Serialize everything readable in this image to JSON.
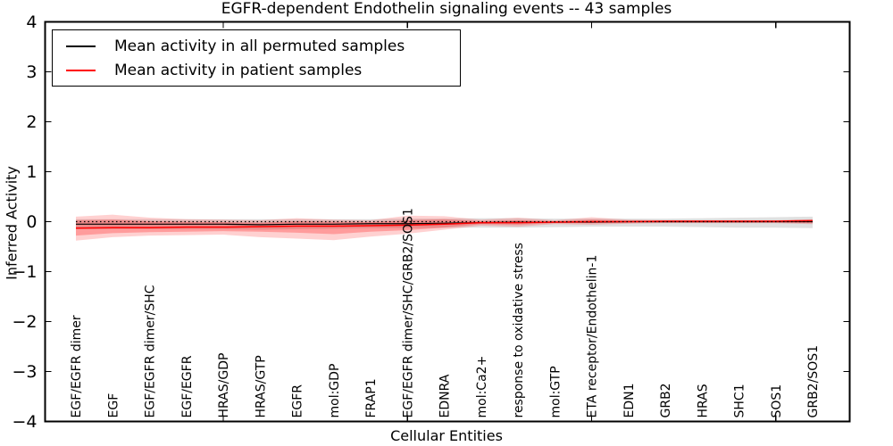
{
  "chart_data": {
    "type": "line",
    "title": "EGFR-dependent Endothelin signaling events -- 43 samples",
    "xlabel": "Cellular Entities",
    "ylabel": "Inferred Activity",
    "ylim": [
      -4,
      4
    ],
    "yticks": [
      -4,
      -3,
      -2,
      -1,
      0,
      1,
      2,
      3,
      4
    ],
    "xtick_indices": [
      4,
      9,
      14,
      19
    ],
    "grid": false,
    "legend_position": "upper left",
    "categories": [
      "EGF/EGFR dimer",
      "EGF",
      "EGF/EGFR dimer/SHC",
      "EGF/EGFR",
      "HRAS/GDP",
      "HRAS/GTP",
      "EGFR",
      "mol:GDP",
      "FRAP1",
      "EGF/EGFR dimer/SHC/GRB2/SOS1",
      "EDNRA",
      "mol:Ca2+",
      "response to oxidative stress",
      "mol:GTP",
      "ETA receptor/Endothelin-1",
      "EDN1",
      "GRB2",
      "HRAS",
      "SHC1",
      "SOS1",
      "GRB2/SOS1"
    ],
    "series": [
      {
        "name": "Mean activity in all permuted samples",
        "color": "#000000",
        "line_style": "solid",
        "in_legend": true,
        "values": [
          -0.05,
          -0.05,
          -0.05,
          -0.05,
          -0.05,
          -0.06,
          -0.05,
          -0.05,
          -0.04,
          -0.04,
          -0.03,
          -0.02,
          -0.01,
          -0.01,
          -0.01,
          0.0,
          0.0,
          0.0,
          0.0,
          0.0,
          0.0
        ]
      },
      {
        "name": "Mean activity in patient samples",
        "color": "#ff0000",
        "line_style": "solid",
        "in_legend": true,
        "values": [
          -0.13,
          -0.12,
          -0.12,
          -0.11,
          -0.11,
          -0.1,
          -0.09,
          -0.09,
          -0.08,
          -0.07,
          -0.05,
          -0.02,
          -0.02,
          -0.01,
          0.0,
          0.0,
          0.01,
          0.01,
          0.01,
          0.01,
          0.02
        ]
      },
      {
        "name": "zero reference",
        "color": "#000000",
        "line_style": "dotted",
        "in_legend": false,
        "values": [
          0,
          0,
          0,
          0,
          0,
          0,
          0,
          0,
          0,
          0,
          0,
          0,
          0,
          0,
          0,
          0,
          0,
          0,
          0,
          0,
          0
        ]
      }
    ],
    "bands": [
      {
        "id": "permuted-std-band",
        "color": "#000000",
        "alpha": 0.12,
        "upper": [
          0.05,
          0.05,
          0.05,
          0.05,
          0.05,
          0.05,
          0.05,
          0.05,
          0.05,
          0.06,
          0.06,
          0.07,
          0.07,
          0.06,
          0.06,
          0.06,
          0.06,
          0.07,
          0.08,
          0.09,
          0.1
        ],
        "lower": [
          -0.15,
          -0.15,
          -0.15,
          -0.15,
          -0.15,
          -0.16,
          -0.15,
          -0.14,
          -0.13,
          -0.13,
          -0.12,
          -0.12,
          -0.12,
          -0.11,
          -0.1,
          -0.1,
          -0.1,
          -0.11,
          -0.12,
          -0.12,
          -0.13
        ]
      },
      {
        "id": "patient-outer-band",
        "color": "#ff0000",
        "alpha": 0.18,
        "upper": [
          0.1,
          0.14,
          0.08,
          0.05,
          0.04,
          0.03,
          0.07,
          0.04,
          0.03,
          0.12,
          0.11,
          0.04,
          0.08,
          0.03,
          0.09,
          0.04,
          0.03,
          0.03,
          0.03,
          0.03,
          0.05
        ],
        "lower": [
          -0.38,
          -0.31,
          -0.28,
          -0.27,
          -0.26,
          -0.31,
          -0.34,
          -0.37,
          -0.3,
          -0.24,
          -0.16,
          -0.08,
          -0.1,
          -0.05,
          -0.06,
          -0.04,
          -0.03,
          -0.03,
          -0.03,
          -0.03,
          -0.05
        ]
      },
      {
        "id": "patient-inner-band",
        "color": "#ff0000",
        "alpha": 0.25,
        "upper": [
          0.03,
          0.04,
          0.01,
          0.0,
          -0.01,
          -0.02,
          0.01,
          0.0,
          -0.01,
          0.03,
          0.05,
          0.01,
          0.03,
          0.01,
          0.04,
          0.02,
          0.02,
          0.02,
          0.02,
          0.02,
          0.03
        ],
        "lower": [
          -0.28,
          -0.23,
          -0.21,
          -0.2,
          -0.19,
          -0.2,
          -0.22,
          -0.25,
          -0.2,
          -0.17,
          -0.12,
          -0.05,
          -0.06,
          -0.03,
          -0.03,
          -0.02,
          -0.02,
          -0.02,
          -0.02,
          -0.02,
          -0.03
        ]
      }
    ]
  }
}
